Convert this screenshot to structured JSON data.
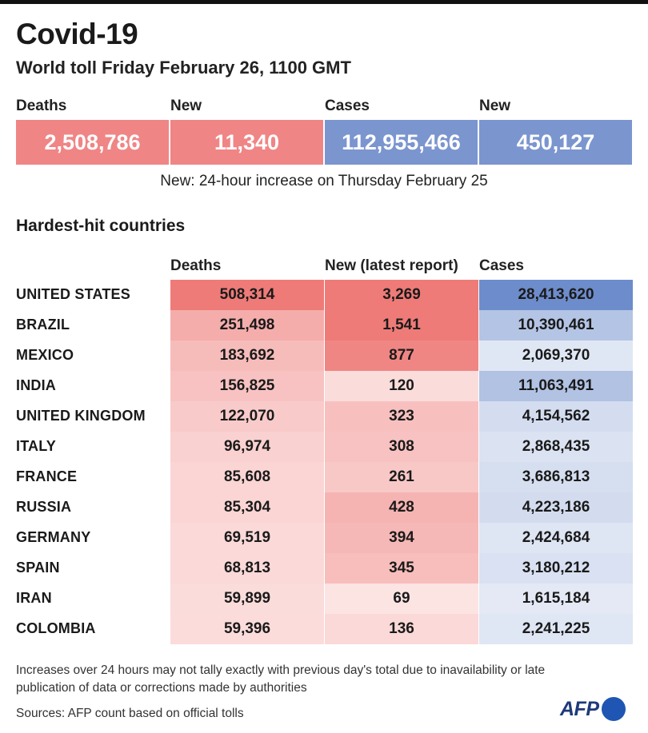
{
  "title": "Covid-19",
  "subtitle": "World toll Friday February 26,  1100 GMT",
  "summary": [
    {
      "label": "Deaths",
      "value": "2,508,786",
      "color": "#f08585"
    },
    {
      "label": "New",
      "value": "11,340",
      "color": "#f08585"
    },
    {
      "label": "Cases",
      "value": "112,955,466",
      "color": "#7b95cf"
    },
    {
      "label": "New",
      "value": "450,127",
      "color": "#7b95cf"
    }
  ],
  "summary_note": "New: 24-hour increase on Thursday February 25",
  "section_title": "Hardest-hit countries",
  "columns": {
    "deaths": "Deaths",
    "new": "New (latest report)",
    "cases": "Cases"
  },
  "colors": {
    "red_scale": "#ee7b78",
    "blue_scale": "#6d8ccb"
  },
  "chart_data": {
    "type": "table",
    "title": "Hardest-hit countries",
    "columns": [
      "Deaths",
      "New (latest report)",
      "Cases"
    ],
    "rows": [
      {
        "country": "UNITED STATES",
        "deaths": 508314,
        "new": 3269,
        "cases": 28413620
      },
      {
        "country": "BRAZIL",
        "deaths": 251498,
        "new": 1541,
        "cases": 10390461
      },
      {
        "country": "MEXICO",
        "deaths": 183692,
        "new": 877,
        "cases": 2069370
      },
      {
        "country": "INDIA",
        "deaths": 156825,
        "new": 120,
        "cases": 11063491
      },
      {
        "country": "UNITED KINGDOM",
        "deaths": 122070,
        "new": 323,
        "cases": 4154562
      },
      {
        "country": "ITALY",
        "deaths": 96974,
        "new": 308,
        "cases": 2868435
      },
      {
        "country": "FRANCE",
        "deaths": 85608,
        "new": 261,
        "cases": 3686813
      },
      {
        "country": "RUSSIA",
        "deaths": 85304,
        "new": 428,
        "cases": 4223186
      },
      {
        "country": "GERMANY",
        "deaths": 69519,
        "new": 394,
        "cases": 2424684
      },
      {
        "country": "SPAIN",
        "deaths": 68813,
        "new": 345,
        "cases": 3180212
      },
      {
        "country": "IRAN",
        "deaths": 59899,
        "new": 69,
        "cases": 1615184
      },
      {
        "country": "COLOMBIA",
        "deaths": 59396,
        "new": 136,
        "cases": 2241225
      }
    ]
  },
  "footnote": "Increases over 24 hours may not tally exactly with previous day's total due to inavailability or late publication of data or corrections made by authorities",
  "source": "Sources: AFP count based on official tolls",
  "logo_text": "AFP"
}
